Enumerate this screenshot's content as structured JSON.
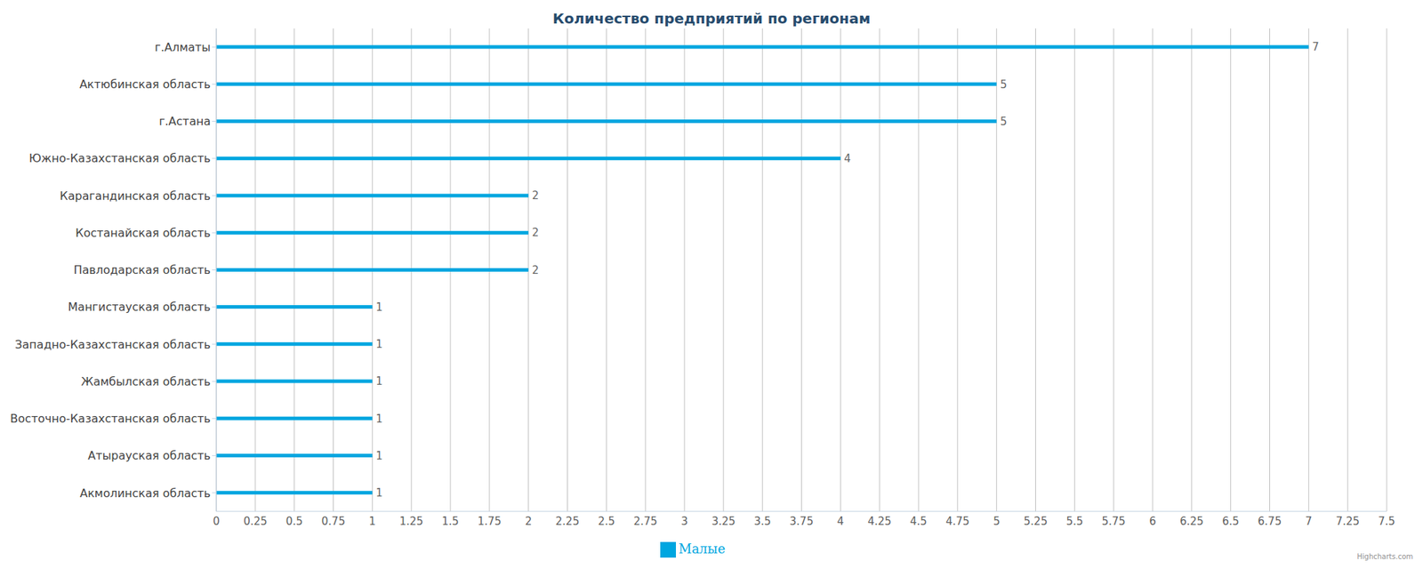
{
  "chart_data": {
    "type": "bar",
    "title": "Количество предприятий по регионам",
    "orientation": "horizontal",
    "categories": [
      "г.Алматы",
      "Актюбинская область",
      "г.Астана",
      "Южно-Казахстанская область",
      "Карагандинская область",
      "Костанайская область",
      "Павлодарская область",
      "Мангистауская область",
      "Западно-Казахстанская область",
      "Жамбылская область",
      "Восточно-Казахстанская область",
      "Атырауская область",
      "Акмолинская область"
    ],
    "series": [
      {
        "name": "Малые",
        "color": "#00a6e0",
        "values": [
          7,
          5,
          5,
          4,
          2,
          2,
          2,
          1,
          1,
          1,
          1,
          1,
          1
        ]
      }
    ],
    "xlim": [
      0,
      7.5
    ],
    "xticks": [
      0,
      0.25,
      0.5,
      0.75,
      1,
      1.25,
      1.5,
      1.75,
      2,
      2.25,
      2.5,
      2.75,
      3,
      3.25,
      3.5,
      3.75,
      4,
      4.25,
      4.5,
      4.75,
      5,
      5.25,
      5.5,
      5.75,
      6,
      6.25,
      6.5,
      6.75,
      7,
      7.25,
      7.5
    ],
    "grid": true,
    "data_labels": true,
    "legend": "bottom",
    "credits": "Highcharts.com"
  }
}
